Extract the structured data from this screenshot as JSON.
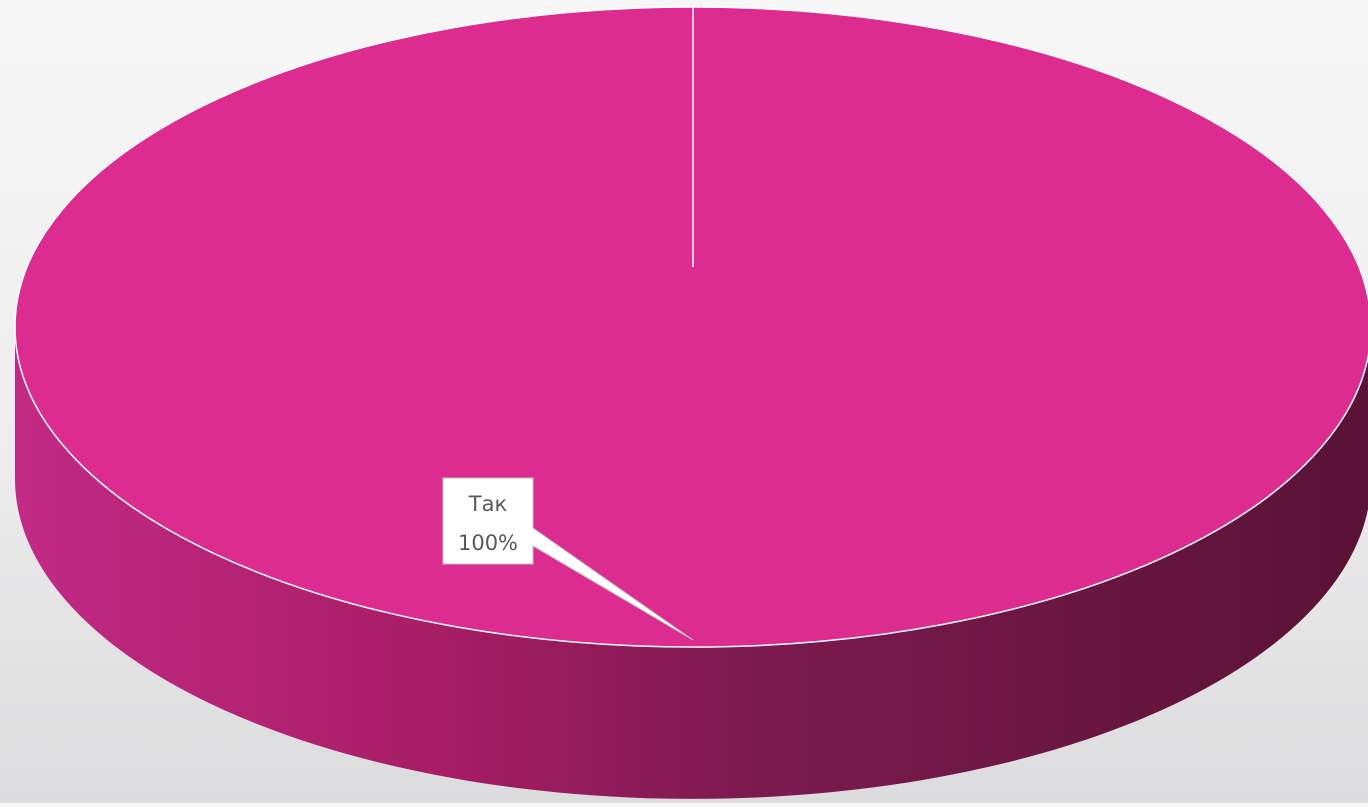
{
  "chart_data": {
    "type": "pie",
    "style": "3d",
    "title": "",
    "categories": [
      "Так"
    ],
    "values": [
      100
    ],
    "data_labels": [
      {
        "category": "Так",
        "value_text": "100%"
      }
    ],
    "colors": {
      "slice_top": "#dd2c8f",
      "side_light": "#c22a86",
      "side_dark": "#5a1236",
      "separator": "#ffffff",
      "callout_fill": "#ffffff",
      "callout_border": "#bfbfbf",
      "label_text": "#595959"
    },
    "legend": "none",
    "grid": false
  }
}
